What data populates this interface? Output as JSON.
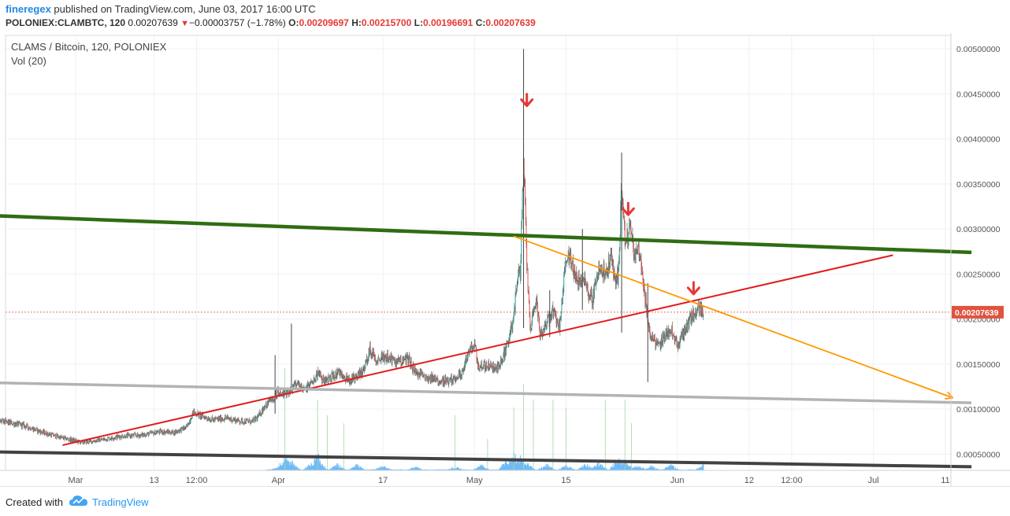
{
  "header": {
    "author": "fineregex",
    "published_text": " published on TradingView.com, June 03, 2017 16:00 UTC",
    "symbol": "POLONIEX:CLAMBTC, 120",
    "last": "0.00207639",
    "change_arrow": "▼",
    "change": "−0.00003757 (−1.78%)",
    "o_label": "O:",
    "o_value": "0.00209697",
    "h_label": "H:",
    "h_value": "0.00215700",
    "l_label": "L:",
    "l_value": "0.00196691",
    "c_label": "C:",
    "c_value": "0.00207639"
  },
  "footer": {
    "created_with": "Created with",
    "brand": "TradingView"
  },
  "chart_data": {
    "type": "candlestick",
    "title": "CLAMS / Bitcoin, 120, POLONIEX",
    "indicator_label": "Vol (20)",
    "last_price_label": "0.00207639",
    "last_price": 0.00207639,
    "ylim": [
      0.00032,
      0.00515
    ],
    "y_ticks": [
      "0.00500000",
      "0.00450000",
      "0.00400000",
      "0.00350000",
      "0.00300000",
      "0.00250000",
      "0.00200000",
      "0.00150000",
      "0.00100000",
      "0.00050000"
    ],
    "y_tick_values": [
      0.005,
      0.0045,
      0.004,
      0.0035,
      0.003,
      0.0025,
      0.002,
      0.0015,
      0.001,
      0.0005
    ],
    "x_ticks": [
      "Mar",
      "13",
      "12:00",
      "Apr",
      "17",
      "May",
      "15",
      "Jun",
      "12",
      "12:00",
      "Jul",
      "11"
    ],
    "x_tick_positions": [
      0.0,
      12.0,
      18.5,
      31.0,
      47.0,
      61.0,
      75.0,
      92.0,
      103.0,
      109.5,
      122.0,
      133.0
    ],
    "x_unit": "days since Mar 1, 2017",
    "price_path": [
      [
        -17,
        0.00092
      ],
      [
        -14,
        0.00089
      ],
      [
        -11,
        0.00086
      ],
      [
        -8,
        0.00082
      ],
      [
        -5,
        0.00074
      ],
      [
        -2,
        0.00068
      ],
      [
        1,
        0.00063
      ],
      [
        4,
        0.00066
      ],
      [
        7,
        0.0007
      ],
      [
        10,
        0.00071
      ],
      [
        13,
        0.00075
      ],
      [
        15,
        0.00074
      ],
      [
        17,
        0.0008
      ],
      [
        18,
        0.00097
      ],
      [
        19,
        0.00093
      ],
      [
        21,
        0.00088
      ],
      [
        23,
        0.0009
      ],
      [
        25,
        0.00087
      ],
      [
        27,
        0.00086
      ],
      [
        28,
        0.00092
      ],
      [
        29,
        0.00105
      ],
      [
        30,
        0.0011
      ],
      [
        31,
        0.0012
      ],
      [
        32,
        0.00115
      ],
      [
        34,
        0.0013
      ],
      [
        35,
        0.0012
      ],
      [
        37,
        0.0014
      ],
      [
        38,
        0.0013
      ],
      [
        40,
        0.0014
      ],
      [
        42,
        0.00132
      ],
      [
        44,
        0.00142
      ],
      [
        45,
        0.00165
      ],
      [
        46,
        0.00155
      ],
      [
        47,
        0.00158
      ],
      [
        49,
        0.00153
      ],
      [
        51,
        0.00155
      ],
      [
        52,
        0.0014
      ],
      [
        54,
        0.00135
      ],
      [
        56,
        0.00132
      ],
      [
        57,
        0.0013
      ],
      [
        59,
        0.0014
      ],
      [
        60,
        0.0016
      ],
      [
        61,
        0.00175
      ],
      [
        61.5,
        0.00145
      ],
      [
        62,
        0.0015
      ],
      [
        64,
        0.00145
      ],
      [
        65,
        0.0015
      ],
      [
        66,
        0.0017
      ],
      [
        67,
        0.002
      ],
      [
        67.5,
        0.00245
      ],
      [
        68,
        0.0025
      ],
      [
        68.5,
        0.0038
      ],
      [
        69,
        0.0026
      ],
      [
        69.5,
        0.0019
      ],
      [
        70.5,
        0.0022
      ],
      [
        71,
        0.0018
      ],
      [
        72,
        0.00195
      ],
      [
        73,
        0.0021
      ],
      [
        74,
        0.0019
      ],
      [
        75,
        0.0027
      ],
      [
        76,
        0.0026
      ],
      [
        77,
        0.0024
      ],
      [
        78,
        0.0024
      ],
      [
        79,
        0.0022
      ],
      [
        80,
        0.0026
      ],
      [
        81,
        0.0025
      ],
      [
        82,
        0.0027
      ],
      [
        82.5,
        0.0024
      ],
      [
        83,
        0.0025
      ],
      [
        83.5,
        0.0035
      ],
      [
        84,
        0.0029
      ],
      [
        85,
        0.003
      ],
      [
        85.5,
        0.0027
      ],
      [
        86,
        0.0028
      ],
      [
        87,
        0.0023
      ],
      [
        87.5,
        0.002
      ],
      [
        88,
        0.0018
      ],
      [
        89,
        0.0017
      ],
      [
        90,
        0.0018
      ],
      [
        91,
        0.0019
      ],
      [
        92,
        0.0017
      ],
      [
        93,
        0.00185
      ],
      [
        94,
        0.002
      ],
      [
        95,
        0.0021
      ],
      [
        96,
        0.00207
      ]
    ],
    "wick_spikes": [
      [
        68.5,
        0.005,
        0.0019
      ],
      [
        83.5,
        0.00385,
        0.00185
      ],
      [
        77.5,
        0.003,
        0.0021
      ],
      [
        72.5,
        0.00232,
        0.0018
      ],
      [
        87.5,
        0.0024,
        0.0013
      ],
      [
        33,
        0.00195,
        0.00125
      ],
      [
        30.5,
        0.0016,
        0.00095
      ]
    ],
    "volume_profile": [
      [
        31,
        0.2
      ],
      [
        32,
        0.75
      ],
      [
        33,
        0.5
      ],
      [
        36,
        0.4
      ],
      [
        37,
        0.85
      ],
      [
        40,
        0.35
      ],
      [
        43,
        0.3
      ],
      [
        47,
        0.25
      ],
      [
        52,
        0.2
      ],
      [
        58,
        0.22
      ],
      [
        62,
        0.3
      ],
      [
        66,
        0.6
      ],
      [
        67,
        0.95
      ],
      [
        68,
        0.7
      ],
      [
        69,
        0.4
      ],
      [
        72,
        0.35
      ],
      [
        75,
        0.3
      ],
      [
        78,
        0.35
      ],
      [
        80,
        0.4
      ],
      [
        83,
        0.7
      ],
      [
        84,
        0.55
      ],
      [
        86,
        0.3
      ],
      [
        88,
        0.25
      ],
      [
        91,
        0.3
      ],
      [
        96,
        0.3
      ]
    ],
    "trend_lines": [
      {
        "color": "#2e6d12",
        "width": 4.5,
        "from": [
          -17,
          0.00316
        ],
        "to": [
          137,
          0.00274
        ]
      },
      {
        "color": "#e31a1c",
        "width": 2,
        "from": [
          -2,
          0.0006
        ],
        "to": [
          125,
          0.00271
        ]
      },
      {
        "color": "#ff9800",
        "width": 1.8,
        "from": [
          67,
          0.00292
        ],
        "to": [
          134,
          0.00113
        ],
        "arrow": true
      },
      {
        "color": "#b3b3b3",
        "width": 3.5,
        "from": [
          -17,
          0.0013
        ],
        "to": [
          137,
          0.00107
        ]
      },
      {
        "color": "#424242",
        "width": 4,
        "from": [
          -17,
          0.00053
        ],
        "to": [
          137,
          0.00036
        ]
      }
    ],
    "markers": [
      {
        "x": 69,
        "y": 0.00442,
        "color": "#e53935"
      },
      {
        "x": 84.5,
        "y": 0.00321,
        "color": "#e53935"
      },
      {
        "x": 94.5,
        "y": 0.00233,
        "color": "#e53935"
      }
    ],
    "grid": true,
    "colors": {
      "up": "#26a69a",
      "down": "#ef5350",
      "volume": "#64b5f6"
    }
  }
}
